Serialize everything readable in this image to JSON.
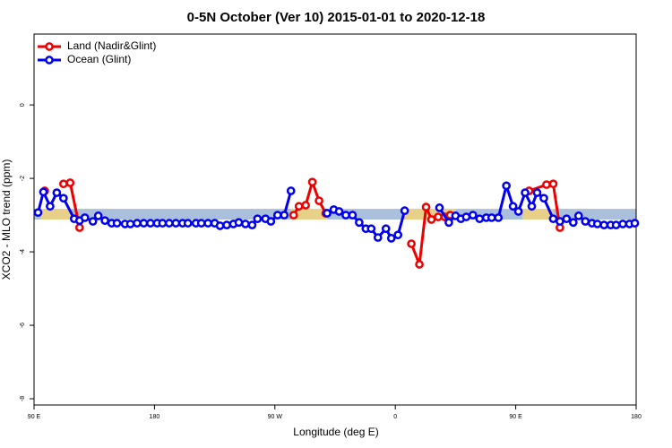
{
  "chart_data": {
    "type": "line",
    "title": "0-5N October (Ver 10)   2015-01-01 to 2020-12-18",
    "x_label": "Longitude (deg E)",
    "y_label": "XCO2 - MLO trend (ppm)",
    "xlim": [
      90,
      540
    ],
    "ylim": [
      -8.17,
      1.93
    ],
    "xticks": [
      {
        "value": 90,
        "label": "90 E"
      },
      180,
      {
        "value": 270,
        "label": "90 W"
      },
      {
        "value": 360,
        "label": "0"
      },
      {
        "value": 450,
        "label": "90 E"
      },
      {
        "value": 540,
        "label": "180"
      }
    ],
    "yticks": [
      0,
      -2,
      -4,
      -6,
      -8
    ],
    "legend": "top-left",
    "band": {
      "ylim": [
        -3.12,
        -2.83
      ],
      "color": "#a9bfdc",
      "land_color": "#f5d27a",
      "land_ranges": [
        [
          95,
          118
        ],
        [
          282,
          309
        ],
        [
          367,
          405
        ],
        [
          455,
          478
        ]
      ]
    },
    "series": [
      {
        "name": "Land (Nadir&Glint)",
        "color": "#ee0000",
        "x": [
          98,
          null,
          112,
          117,
          124,
          null,
          284,
          288,
          293,
          298,
          303,
          308,
          null,
          372,
          378,
          383,
          387,
          392,
          397,
          401,
          null,
          460,
          473,
          478,
          483
        ],
        "values": [
          -2.34,
          null,
          -2.15,
          -2.12,
          -3.34,
          null,
          -3.0,
          -2.76,
          -2.73,
          -2.1,
          -2.61,
          -2.95,
          null,
          -3.78,
          -4.34,
          -2.78,
          -3.12,
          -3.05,
          -3.05,
          -3.0,
          null,
          -2.34,
          -2.17,
          -2.15,
          -3.34
        ]
      },
      {
        "name": "Ocean (Glint)",
        "color": "#0000ee",
        "x": [
          93,
          97,
          102,
          107,
          112,
          120,
          124,
          128,
          134,
          138,
          143,
          148,
          152,
          158,
          162,
          167,
          172,
          177,
          182,
          186,
          191,
          196,
          201,
          205,
          211,
          215,
          220,
          225,
          229,
          234,
          239,
          243,
          248,
          253,
          257,
          263,
          267,
          272,
          277,
          282,
          null,
          309,
          314,
          318,
          323,
          328,
          333,
          338,
          342,
          347,
          353,
          357,
          362,
          367,
          null,
          393,
          400,
          405,
          409,
          413,
          418,
          423,
          428,
          432,
          437,
          443,
          448,
          452,
          457,
          462,
          466,
          471,
          478,
          483,
          488,
          493,
          497,
          502,
          507,
          511,
          516,
          521,
          525,
          530,
          535,
          539
        ],
        "values": [
          -2.93,
          -2.37,
          -2.76,
          -2.39,
          -2.54,
          -3.1,
          -3.15,
          -3.07,
          -3.17,
          -3.02,
          -3.15,
          -3.22,
          -3.22,
          -3.24,
          -3.24,
          -3.22,
          -3.22,
          -3.22,
          -3.22,
          -3.22,
          -3.22,
          -3.22,
          -3.22,
          -3.22,
          -3.22,
          -3.22,
          -3.22,
          -3.22,
          -3.29,
          -3.27,
          -3.24,
          -3.2,
          -3.24,
          -3.27,
          -3.1,
          -3.1,
          -3.17,
          -3.0,
          -3.0,
          -2.34,
          null,
          -2.95,
          -2.85,
          -2.9,
          -3.0,
          -3.0,
          -3.2,
          -3.37,
          -3.37,
          -3.61,
          -3.37,
          -3.63,
          -3.54,
          -2.88,
          null,
          -2.8,
          -3.2,
          -3.02,
          -3.1,
          -3.05,
          -3.0,
          -3.1,
          -3.07,
          -3.07,
          -3.07,
          -2.2,
          -2.76,
          -2.9,
          -2.39,
          -2.76,
          -2.39,
          -2.54,
          -3.1,
          -3.17,
          -3.1,
          -3.2,
          -3.02,
          -3.17,
          -3.22,
          -3.24,
          -3.27,
          -3.27,
          -3.27,
          -3.24,
          -3.24,
          -3.22
        ]
      }
    ]
  }
}
